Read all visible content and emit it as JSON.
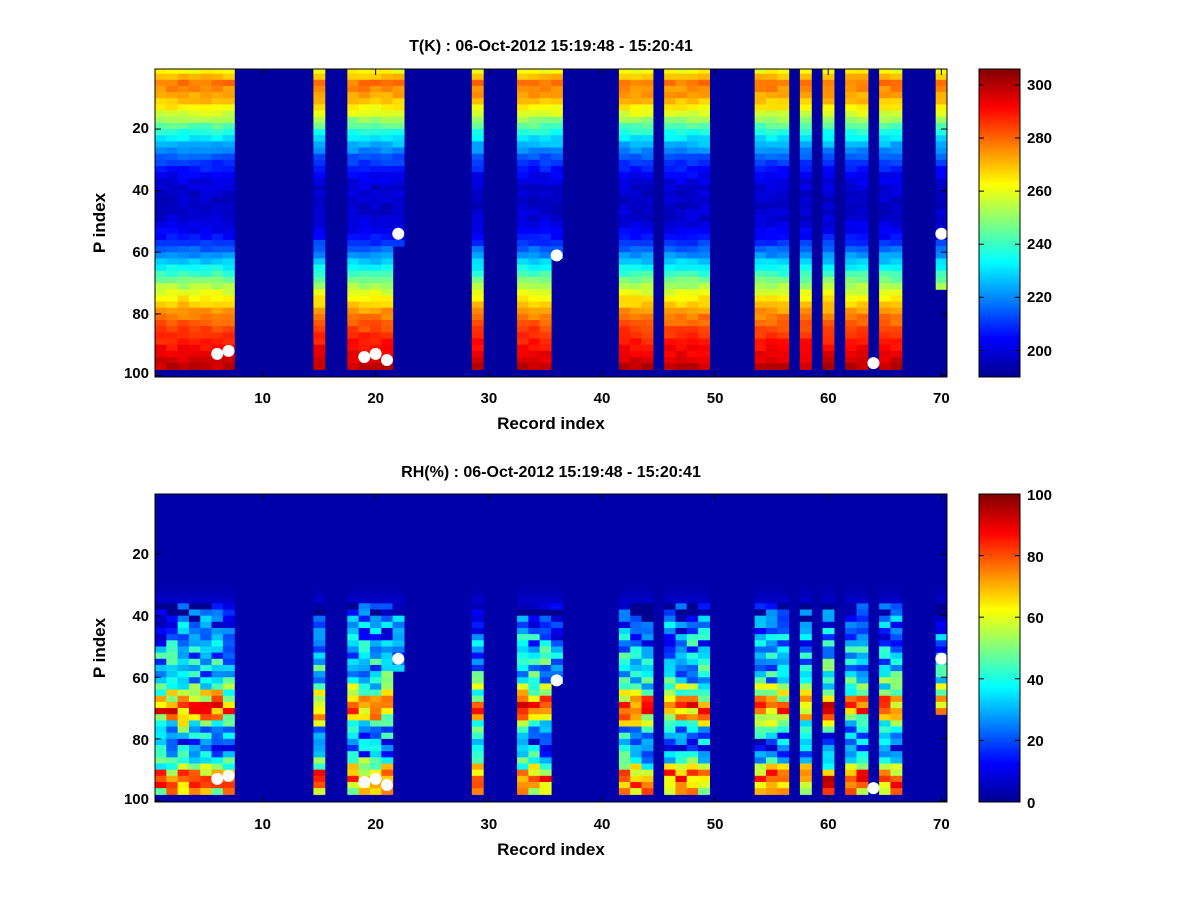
{
  "chart_data": [
    {
      "type": "heatmap",
      "title": "T(K) : 06-Oct-2012 15:19:48 - 15:20:41",
      "xlabel": "Record index",
      "ylabel": "P index",
      "xlim": [
        0.5,
        70.5
      ],
      "ylim": [
        1,
        100
      ],
      "y_direction": "reversed",
      "x_ticks": [
        "10",
        "20",
        "30",
        "40",
        "50",
        "60",
        "70"
      ],
      "y_ticks": [
        "20",
        "40",
        "60",
        "80",
        "100"
      ],
      "colormap": "jet",
      "colorbar": {
        "range": [
          190,
          306
        ],
        "ticks": [
          "200",
          "220",
          "240",
          "260",
          "280",
          "300"
        ]
      },
      "background_value": 192,
      "filled_records": [
        1,
        2,
        3,
        4,
        5,
        6,
        7,
        15,
        18,
        19,
        20,
        21,
        22,
        29,
        33,
        34,
        35,
        36,
        42,
        43,
        44,
        46,
        47,
        48,
        49,
        54,
        55,
        56,
        58,
        60,
        62,
        63,
        65,
        66,
        70
      ],
      "record_last_level": {
        "1": 98,
        "2": 98,
        "3": 98,
        "4": 98,
        "5": 98,
        "6": 98,
        "7": 98,
        "15": 98,
        "18": 98,
        "19": 98,
        "20": 98,
        "21": 98,
        "22": 58,
        "29": 98,
        "33": 98,
        "34": 98,
        "35": 98,
        "36": 61,
        "42": 98,
        "43": 98,
        "44": 98,
        "46": 98,
        "47": 98,
        "48": 98,
        "49": 98,
        "54": 98,
        "55": 98,
        "56": 98,
        "58": 98,
        "60": 98,
        "62": 98,
        "63": 98,
        "65": 98,
        "66": 98,
        "70": 72
      },
      "temperature_profile_K": {
        "p_index": [
          1,
          5,
          10,
          15,
          20,
          25,
          30,
          35,
          40,
          45,
          50,
          55,
          60,
          65,
          70,
          75,
          80,
          85,
          90,
          95,
          98
        ],
        "value": [
          262,
          278,
          272,
          258,
          240,
          225,
          212,
          203,
          198,
          197,
          199,
          206,
          218,
          234,
          250,
          264,
          276,
          284,
          290,
          296,
          300
        ]
      },
      "surface_markers": [
        {
          "record": 6,
          "p_index": 93
        },
        {
          "record": 7,
          "p_index": 92
        },
        {
          "record": 19,
          "p_index": 94
        },
        {
          "record": 20,
          "p_index": 93
        },
        {
          "record": 21,
          "p_index": 95
        },
        {
          "record": 22,
          "p_index": 54
        },
        {
          "record": 36,
          "p_index": 61
        },
        {
          "record": 64,
          "p_index": 96
        },
        {
          "record": 70,
          "p_index": 54
        }
      ]
    },
    {
      "type": "heatmap",
      "title": "RH(%) : 06-Oct-2012 15:19:48 - 15:20:41",
      "xlabel": "Record index",
      "ylabel": "P index",
      "xlim": [
        0.5,
        70.5
      ],
      "ylim": [
        1,
        100
      ],
      "y_direction": "reversed",
      "x_ticks": [
        "10",
        "20",
        "30",
        "40",
        "50",
        "60",
        "70"
      ],
      "y_ticks": [
        "20",
        "40",
        "60",
        "80",
        "100"
      ],
      "colormap": "jet",
      "colorbar": {
        "range": [
          0,
          100
        ],
        "ticks": [
          "0",
          "20",
          "40",
          "60",
          "80",
          "100"
        ]
      },
      "background_value": 3,
      "filled_records": [
        1,
        2,
        3,
        4,
        5,
        6,
        7,
        15,
        18,
        19,
        20,
        21,
        22,
        29,
        33,
        34,
        35,
        36,
        42,
        43,
        44,
        46,
        47,
        48,
        49,
        54,
        55,
        56,
        58,
        60,
        62,
        63,
        65,
        66,
        70
      ],
      "record_last_level": {
        "1": 98,
        "2": 98,
        "3": 98,
        "4": 98,
        "5": 98,
        "6": 98,
        "7": 98,
        "15": 98,
        "18": 98,
        "19": 98,
        "20": 98,
        "21": 98,
        "22": 58,
        "29": 98,
        "33": 98,
        "34": 98,
        "35": 98,
        "36": 61,
        "42": 98,
        "43": 98,
        "44": 98,
        "46": 98,
        "47": 98,
        "48": 98,
        "49": 98,
        "54": 98,
        "55": 98,
        "56": 98,
        "58": 98,
        "60": 98,
        "62": 98,
        "63": 98,
        "65": 98,
        "66": 98,
        "70": 72
      },
      "humidity_profile_pct": {
        "p_index": [
          1,
          30,
          38,
          42,
          50,
          56,
          60,
          64,
          68,
          70,
          72,
          76,
          80,
          84,
          88,
          92,
          95,
          98
        ],
        "value": [
          3,
          3,
          8,
          20,
          28,
          35,
          32,
          50,
          72,
          78,
          70,
          40,
          22,
          25,
          45,
          80,
          75,
          60
        ]
      },
      "surface_markers": [
        {
          "record": 6,
          "p_index": 93
        },
        {
          "record": 7,
          "p_index": 92
        },
        {
          "record": 19,
          "p_index": 94
        },
        {
          "record": 20,
          "p_index": 93
        },
        {
          "record": 21,
          "p_index": 95
        },
        {
          "record": 22,
          "p_index": 54
        },
        {
          "record": 36,
          "p_index": 61
        },
        {
          "record": 64,
          "p_index": 96
        },
        {
          "record": 70,
          "p_index": 54
        }
      ]
    }
  ]
}
